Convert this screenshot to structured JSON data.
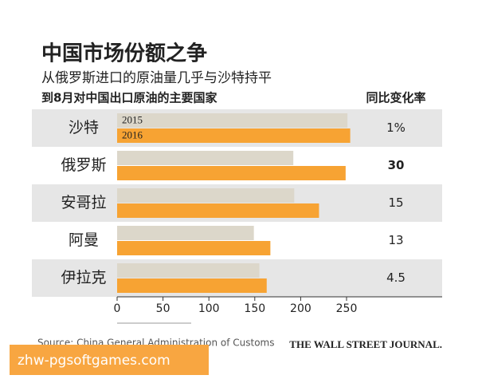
{
  "chart_data": {
    "type": "hbar",
    "title": "中国市场份额之争",
    "subtitle": "从俄罗斯进口的原油量几乎与沙特持平",
    "description": "到8月对中国出口原油的主要国家",
    "categories": [
      "沙特",
      "俄罗斯",
      "安哥拉",
      "阿曼",
      "伊拉克"
    ],
    "series": [
      {
        "name": "2015",
        "color": "#dcd7ca",
        "values": [
          251,
          192,
          193,
          149,
          155
        ]
      },
      {
        "name": "2016",
        "color": "#f7a333",
        "values": [
          254,
          249,
          220,
          167,
          163
        ]
      }
    ],
    "change": {
      "header": "同比变化率",
      "values": [
        1,
        30,
        15,
        13,
        4.5
      ],
      "value_labels": [
        "1%",
        "30",
        "15",
        "13",
        "4.5"
      ]
    },
    "xlim": [
      0,
      250
    ],
    "xticks": [
      0,
      50,
      100,
      150,
      200,
      250
    ],
    "source": "Source: China General Administration of Customs",
    "publisher": "THE WALL STREET JOURNAL.",
    "watermark": "zhw-pgsoftgames.com"
  }
}
